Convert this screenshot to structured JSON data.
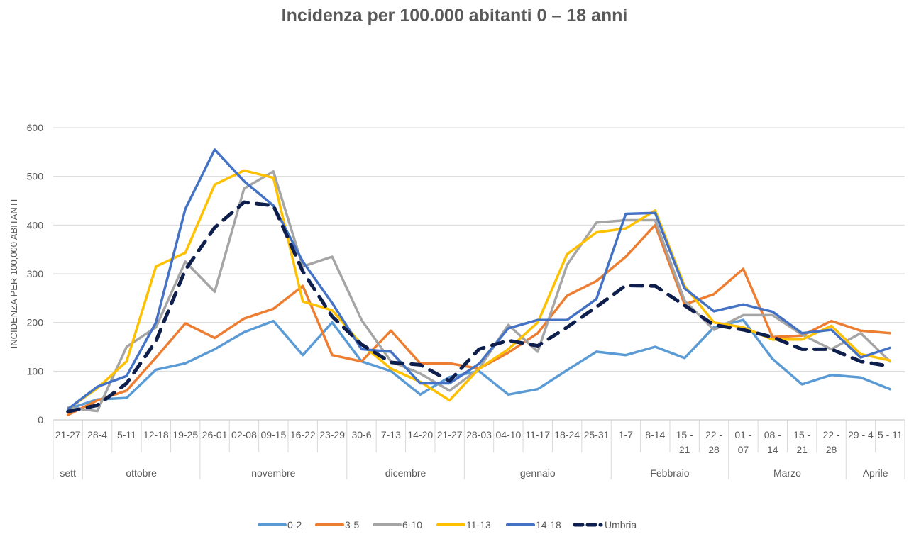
{
  "chart_data": {
    "type": "line",
    "title": "Incidenza per 100.000 abitanti 0 – 18 anni",
    "ylabel": "INCIDENZA PER 100,000 ABITANTI",
    "xlabel": "",
    "ylim": [
      0,
      600
    ],
    "yticks": [
      0,
      100,
      200,
      300,
      400,
      500,
      600
    ],
    "grid": true,
    "legend_position": "bottom",
    "categories": [
      [
        "21-27"
      ],
      [
        "28-4"
      ],
      [
        "5-11"
      ],
      [
        "12-18"
      ],
      [
        "19-25"
      ],
      [
        "26-01"
      ],
      [
        "02-08"
      ],
      [
        "09-15"
      ],
      [
        "16-22"
      ],
      [
        "23-29"
      ],
      [
        "30-6"
      ],
      [
        "7-13"
      ],
      [
        "14-20"
      ],
      [
        "21-27"
      ],
      [
        "28-03"
      ],
      [
        "04-10"
      ],
      [
        "11-17"
      ],
      [
        "18-24"
      ],
      [
        "25-31"
      ],
      [
        "1-7"
      ],
      [
        "8-14"
      ],
      [
        "15 -",
        "21"
      ],
      [
        "22 -",
        "28"
      ],
      [
        "01 -",
        "07"
      ],
      [
        "08 -",
        "14"
      ],
      [
        "15 -",
        "21"
      ],
      [
        "22 -",
        "28"
      ],
      [
        "29 - 4"
      ],
      [
        "5 - 11"
      ]
    ],
    "month_groups": [
      {
        "label": "sett",
        "start": 0,
        "end": 0
      },
      {
        "label": "ottobre",
        "start": 1,
        "end": 4
      },
      {
        "label": "novembre",
        "start": 5,
        "end": 9
      },
      {
        "label": "dicembre",
        "start": 10,
        "end": 13
      },
      {
        "label": "gennaio",
        "start": 14,
        "end": 18
      },
      {
        "label": "Febbraio",
        "start": 19,
        "end": 22
      },
      {
        "label": "Marzo",
        "start": 23,
        "end": 26
      },
      {
        "label": "Aprile",
        "start": 27,
        "end": 28
      }
    ],
    "series": [
      {
        "name": "0-2",
        "color": "#5B9BD5",
        "dashed": false,
        "values": [
          22,
          42,
          45,
          103,
          116,
          145,
          180,
          203,
          133,
          200,
          120,
          100,
          52,
          88,
          100,
          52,
          63,
          102,
          140,
          133,
          150,
          127,
          190,
          205,
          125,
          73,
          92,
          87,
          63
        ]
      },
      {
        "name": "3-5",
        "color": "#ED7D31",
        "dashed": false,
        "values": [
          10,
          40,
          60,
          128,
          198,
          168,
          208,
          228,
          275,
          133,
          120,
          183,
          116,
          116,
          105,
          138,
          178,
          255,
          285,
          335,
          400,
          237,
          258,
          310,
          170,
          173,
          203,
          183,
          178
        ]
      },
      {
        "name": "6-10",
        "color": "#A5A5A5",
        "dashed": false,
        "values": [
          25,
          18,
          150,
          190,
          325,
          263,
          475,
          510,
          315,
          335,
          205,
          120,
          95,
          60,
          105,
          195,
          140,
          318,
          405,
          410,
          410,
          245,
          185,
          215,
          215,
          175,
          145,
          178,
          120
        ]
      },
      {
        "name": "11-13",
        "color": "#FFC000",
        "dashed": false,
        "values": [
          22,
          65,
          120,
          315,
          343,
          483,
          512,
          497,
          243,
          225,
          155,
          105,
          78,
          40,
          105,
          145,
          200,
          340,
          385,
          393,
          430,
          275,
          200,
          190,
          165,
          165,
          193,
          135,
          122
        ]
      },
      {
        "name": "14-18",
        "color": "#4472C4",
        "dashed": false,
        "values": [
          22,
          68,
          90,
          200,
          433,
          555,
          490,
          440,
          325,
          240,
          145,
          140,
          75,
          75,
          115,
          188,
          205,
          205,
          248,
          423,
          425,
          270,
          223,
          237,
          222,
          178,
          185,
          128,
          148
        ]
      },
      {
        "name": "Umbria",
        "color": "#0E1E4D",
        "dashed": true,
        "values": [
          17,
          30,
          75,
          162,
          308,
          395,
          447,
          440,
          305,
          212,
          155,
          118,
          113,
          80,
          145,
          163,
          152,
          190,
          232,
          276,
          275,
          235,
          195,
          185,
          170,
          145,
          145,
          120,
          110
        ]
      }
    ]
  }
}
